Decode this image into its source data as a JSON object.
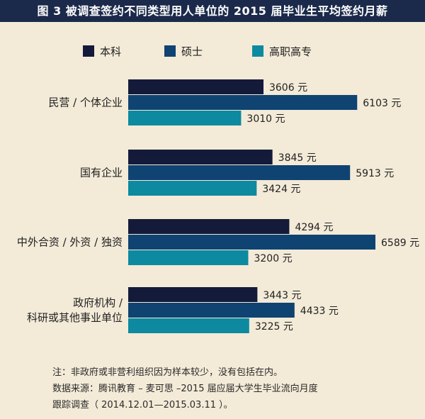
{
  "title": "图 3 被调查签约不同类型用人单位的 2015 届毕业生平均签约月薪",
  "colors": {
    "title_bg": "#1b2a4a",
    "background": "#f3ead8",
    "series": [
      "#131a3a",
      "#0f4472",
      "#0d8aa0"
    ]
  },
  "chart_data": {
    "type": "bar",
    "orientation": "horizontal",
    "title": "图 3 被调查签约不同类型用人单位的 2015 届毕业生平均签约月薪",
    "categories": [
      [
        "民营 / 个体企业"
      ],
      [
        "国有企业"
      ],
      [
        "中外合资 / 外资 / 独资"
      ],
      [
        "政府机构 /",
        "科研或其他事业单位"
      ]
    ],
    "series": [
      {
        "name": "本科",
        "values": [
          3606,
          3845,
          4294,
          3443
        ]
      },
      {
        "name": "硕士",
        "values": [
          6103,
          5913,
          6589,
          4433
        ]
      },
      {
        "name": "高职高专",
        "values": [
          3010,
          3424,
          3200,
          3225
        ]
      }
    ],
    "unit": "元",
    "legend_position": "top",
    "grid": false
  },
  "notes": {
    "line1": "注：非政府或非营利组织因为样本较少，没有包括在内。",
    "line2": "数据来源：腾讯教育 – 麦可思 –2015 届应届大学生毕业流向月度",
    "line3": "跟踪调查（ 2014.12.01—2015.03.11 ）。"
  }
}
